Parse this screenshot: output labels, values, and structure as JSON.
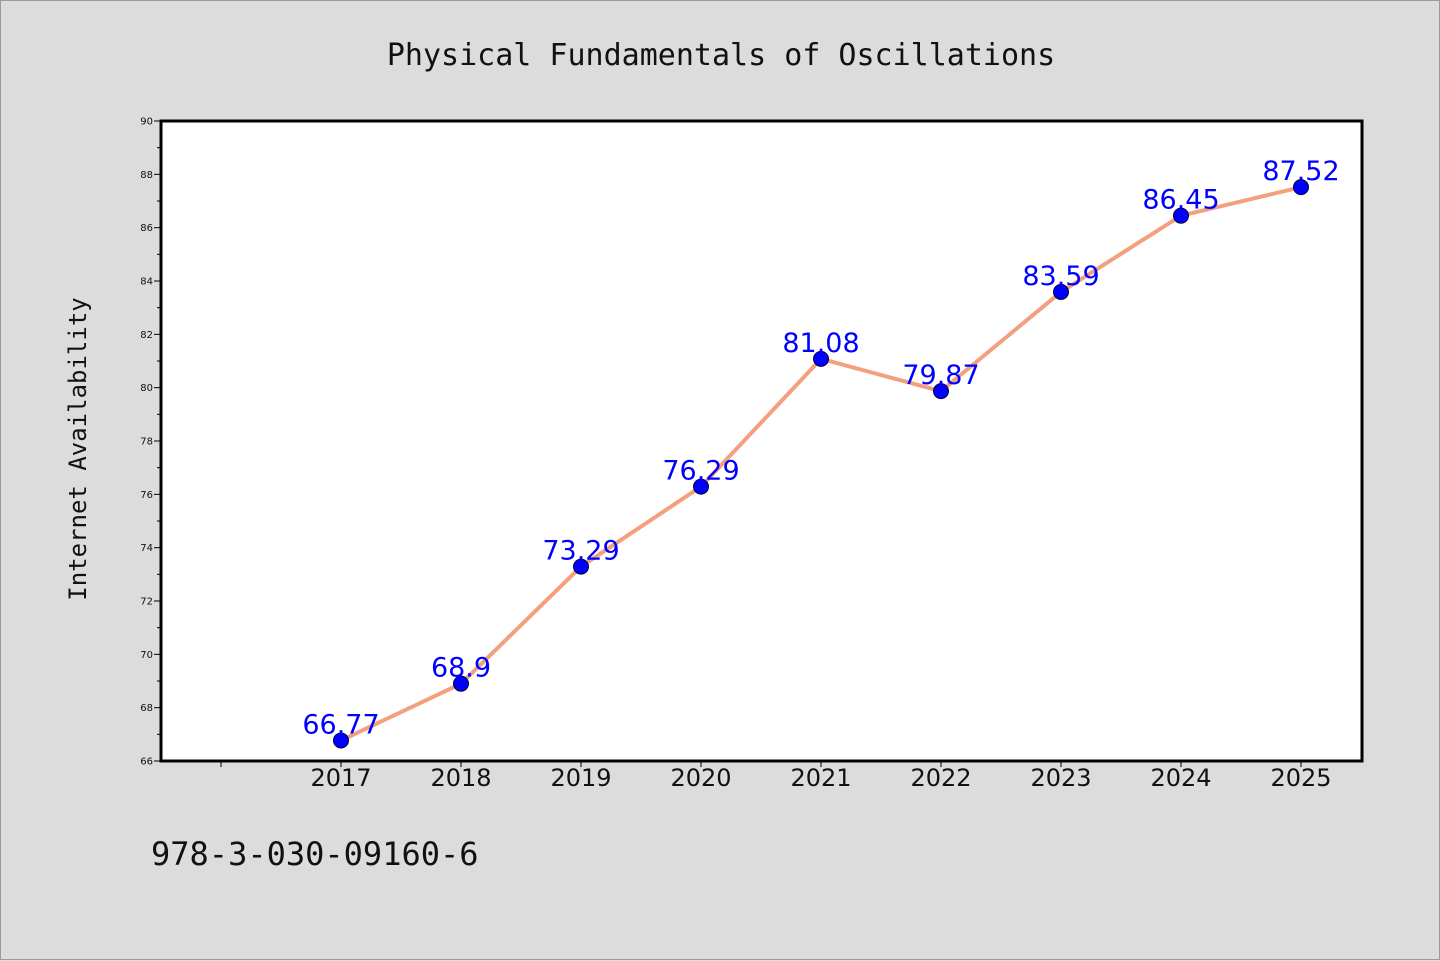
{
  "chart_data": {
    "type": "line",
    "title": "Physical Fundamentals of Oscillations",
    "xlabel": "",
    "ylabel": "Internet Availability",
    "categories": [
      "2017",
      "2018",
      "2019",
      "2020",
      "2021",
      "2022",
      "2023",
      "2024",
      "2025"
    ],
    "series": [
      {
        "values": [
          66.77,
          68.9,
          73.29,
          76.29,
          81.08,
          79.87,
          83.59,
          86.45,
          87.52
        ],
        "data_labels": [
          "66.77",
          "68.9",
          "73.29",
          "76.29",
          "81.08",
          "79.87",
          "83.59",
          "86.45",
          "87.52"
        ],
        "line_color": "#f4a07e",
        "marker_color": "#0000ff"
      }
    ],
    "ylim": [
      66,
      90
    ],
    "yticks": [
      "66",
      "68",
      "70",
      "72",
      "74",
      "76",
      "78",
      "80",
      "82",
      "84",
      "86",
      "88",
      "90"
    ],
    "grid": false,
    "legend": "none"
  },
  "footer": {
    "isbn": "978-3-030-09160-6"
  },
  "colors": {
    "background": "#dcdcdc",
    "plot_background": "#ffffff",
    "line": "#f4a07e",
    "marker": "#0000ff",
    "data_label": "#0000ff"
  }
}
